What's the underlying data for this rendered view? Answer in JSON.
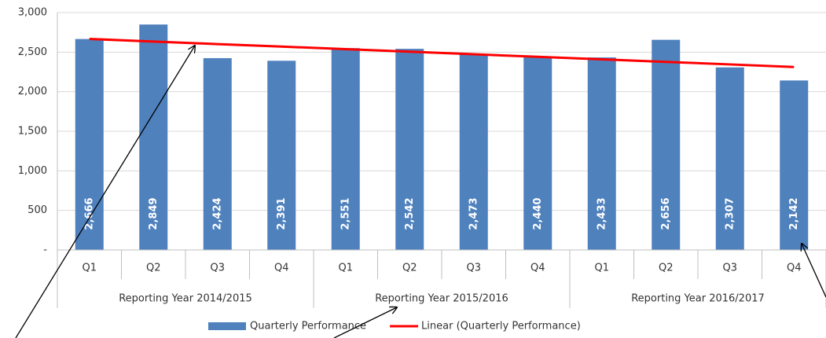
{
  "chart_data": {
    "type": "bar",
    "categories": [
      "Q1",
      "Q2",
      "Q3",
      "Q4",
      "Q1",
      "Q2",
      "Q3",
      "Q4",
      "Q1",
      "Q2",
      "Q3",
      "Q4"
    ],
    "groups": [
      "Reporting Year 2014/2015",
      "Reporting Year 2015/2016",
      "Reporting Year 2016/2017"
    ],
    "series": [
      {
        "name": "Quarterly Performance",
        "color": "#4f81bd",
        "values": [
          2666,
          2849,
          2424,
          2391,
          2551,
          2542,
          2473,
          2440,
          2433,
          2656,
          2307,
          2142
        ],
        "value_labels": [
          "2,666",
          "2,849",
          "2,424",
          "2,391",
          "2,551",
          "2,542",
          "2,473",
          "2,440",
          "2,433",
          "2,656",
          "2,307",
          "2,142"
        ]
      },
      {
        "name": "Linear (Quarterly Performance)",
        "color": "#ff0000",
        "type": "line",
        "values": [
          2667,
          2634,
          2602,
          2570,
          2538,
          2506,
          2473,
          2441,
          2409,
          2377,
          2345,
          2312
        ]
      }
    ],
    "ylim": [
      0,
      3000
    ],
    "yticks": [
      {
        "value": 0,
        "label": "-"
      },
      {
        "value": 500,
        "label": "500"
      },
      {
        "value": 1000,
        "label": "1,000"
      },
      {
        "value": 1500,
        "label": "1,500"
      },
      {
        "value": 2000,
        "label": "2,000"
      },
      {
        "value": 2500,
        "label": "2,500"
      },
      {
        "value": 3000,
        "label": "3,000"
      }
    ],
    "grid": true,
    "legend": "bottom"
  }
}
